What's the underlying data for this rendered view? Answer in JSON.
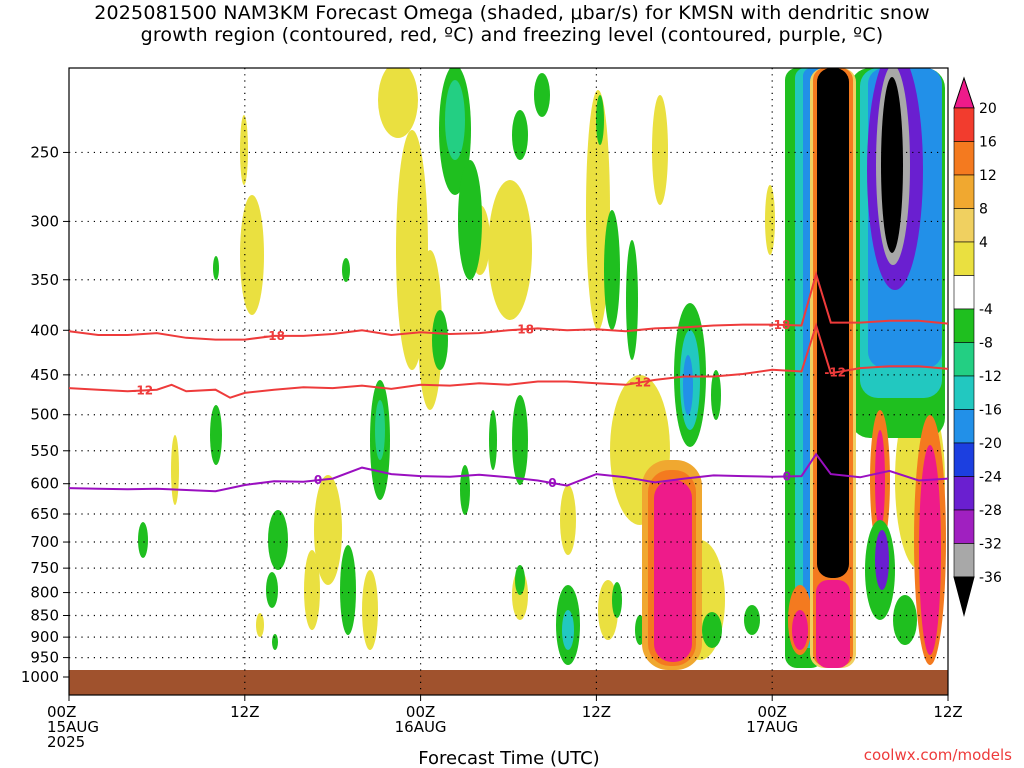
{
  "title": {
    "line1": "2025081500 NAM3KM Forecast Omega (shaded, μbar/s) for KMSN with dendritic snow",
    "line2": "growth region (contoured, red, ºC) and freezing level (contoured, purple, ºC)"
  },
  "credit": "coolwx.com/models",
  "colors": {
    "freezing_level": "#9a0fc0",
    "dgz": "#ee3b3b",
    "ground": "#a0522d"
  },
  "chart_data": {
    "type": "heatmap",
    "xlabel": "Forecast Time (UTC)",
    "ylabel": "",
    "x_unit": "hours since 2025-08-15 00Z",
    "xlim": [
      0,
      60
    ],
    "ylim": [
      1000,
      200
    ],
    "y_scale": "log-pressure",
    "grid": true,
    "x_ticks": [
      {
        "value": 0,
        "lines": [
          "00Z",
          "15AUG",
          "2025"
        ]
      },
      {
        "value": 12,
        "lines": [
          "12Z"
        ]
      },
      {
        "value": 24,
        "lines": [
          "00Z",
          "16AUG"
        ]
      },
      {
        "value": 36,
        "lines": [
          "12Z"
        ]
      },
      {
        "value": 48,
        "lines": [
          "00Z",
          "17AUG"
        ]
      },
      {
        "value": 60,
        "lines": [
          "12Z"
        ]
      }
    ],
    "y_ticks": [
      250,
      300,
      350,
      400,
      450,
      500,
      550,
      600,
      650,
      700,
      750,
      800,
      850,
      900,
      950,
      1000
    ],
    "colorbar": {
      "labels": [
        "20",
        "16",
        "12",
        "8",
        "4",
        "-4",
        "-8",
        "-12",
        "-16",
        "-20",
        "-24",
        "-28",
        "-32",
        "-36"
      ],
      "colors": [
        "#ee1b8a",
        "#f23c2e",
        "#f47a1f",
        "#f0a830",
        "#f0d060",
        "#eae040",
        "#ffffff",
        "#1fbf1f",
        "#23cf83",
        "#22c8c0",
        "#2290e8",
        "#1c3fe0",
        "#6a1fd0",
        "#a020c0",
        "#a8a8a8",
        "#000000"
      ]
    },
    "series": [
      {
        "name": "-18",
        "kind": "dgz_top",
        "x": [
          0,
          2,
          4,
          6,
          8,
          10,
          12,
          14,
          16,
          18,
          20,
          22,
          24,
          26,
          28,
          30,
          32,
          34,
          36,
          38,
          40,
          42,
          44,
          46,
          48,
          50,
          51,
          52,
          54,
          56,
          58,
          60
        ],
        "y": [
          401,
          405,
          405,
          403,
          408,
          410,
          410,
          406,
          406,
          404,
          400,
          405,
          402,
          404,
          403,
          400,
          398,
          400,
          399,
          401,
          398,
          397,
          395,
          394,
          394,
          395,
          345,
          392,
          392,
          390,
          390,
          393
        ]
      },
      {
        "name": "-12",
        "kind": "dgz_bottom",
        "x": [
          0,
          2,
          4,
          6,
          7,
          8,
          10,
          11,
          12,
          14,
          16,
          18,
          20,
          22,
          24,
          26,
          28,
          30,
          32,
          34,
          36,
          38,
          40,
          42,
          44,
          46,
          48,
          50,
          51,
          52,
          54,
          56,
          58,
          60
        ],
        "y": [
          466,
          468,
          470,
          468,
          462,
          470,
          468,
          478,
          472,
          468,
          465,
          466,
          463,
          467,
          462,
          463,
          460,
          462,
          458,
          458,
          460,
          462,
          456,
          452,
          452,
          449,
          444,
          446,
          395,
          448,
          442,
          440,
          440,
          443
        ]
      },
      {
        "name": "0",
        "kind": "freezing_level",
        "x": [
          0,
          2,
          4,
          6,
          8,
          10,
          12,
          14,
          16,
          18,
          20,
          22,
          24,
          26,
          28,
          30,
          32,
          34,
          36,
          38,
          40,
          42,
          44,
          46,
          48,
          50,
          51,
          52,
          54,
          56,
          58,
          60
        ],
        "y": [
          607,
          608,
          609,
          608,
          610,
          612,
          602,
          596,
          597,
          592,
          575,
          585,
          588,
          589,
          586,
          590,
          595,
          603,
          585,
          590,
          598,
          592,
          587,
          588,
          589,
          588,
          555,
          585,
          590,
          580,
          595,
          592
        ]
      }
    ],
    "shaded_features": [
      {
        "x": 51,
        "y": [
          200,
          950
        ],
        "value": "<=-36"
      },
      {
        "x": 40,
        "y": [
          650,
          950
        ],
        "value": ">=20"
      },
      {
        "x": 58.5,
        "y": [
          220,
          340
        ],
        "value": "<=-36"
      },
      {
        "x": 59,
        "y": [
          400,
          950
        ],
        "value": ">=20"
      }
    ]
  }
}
